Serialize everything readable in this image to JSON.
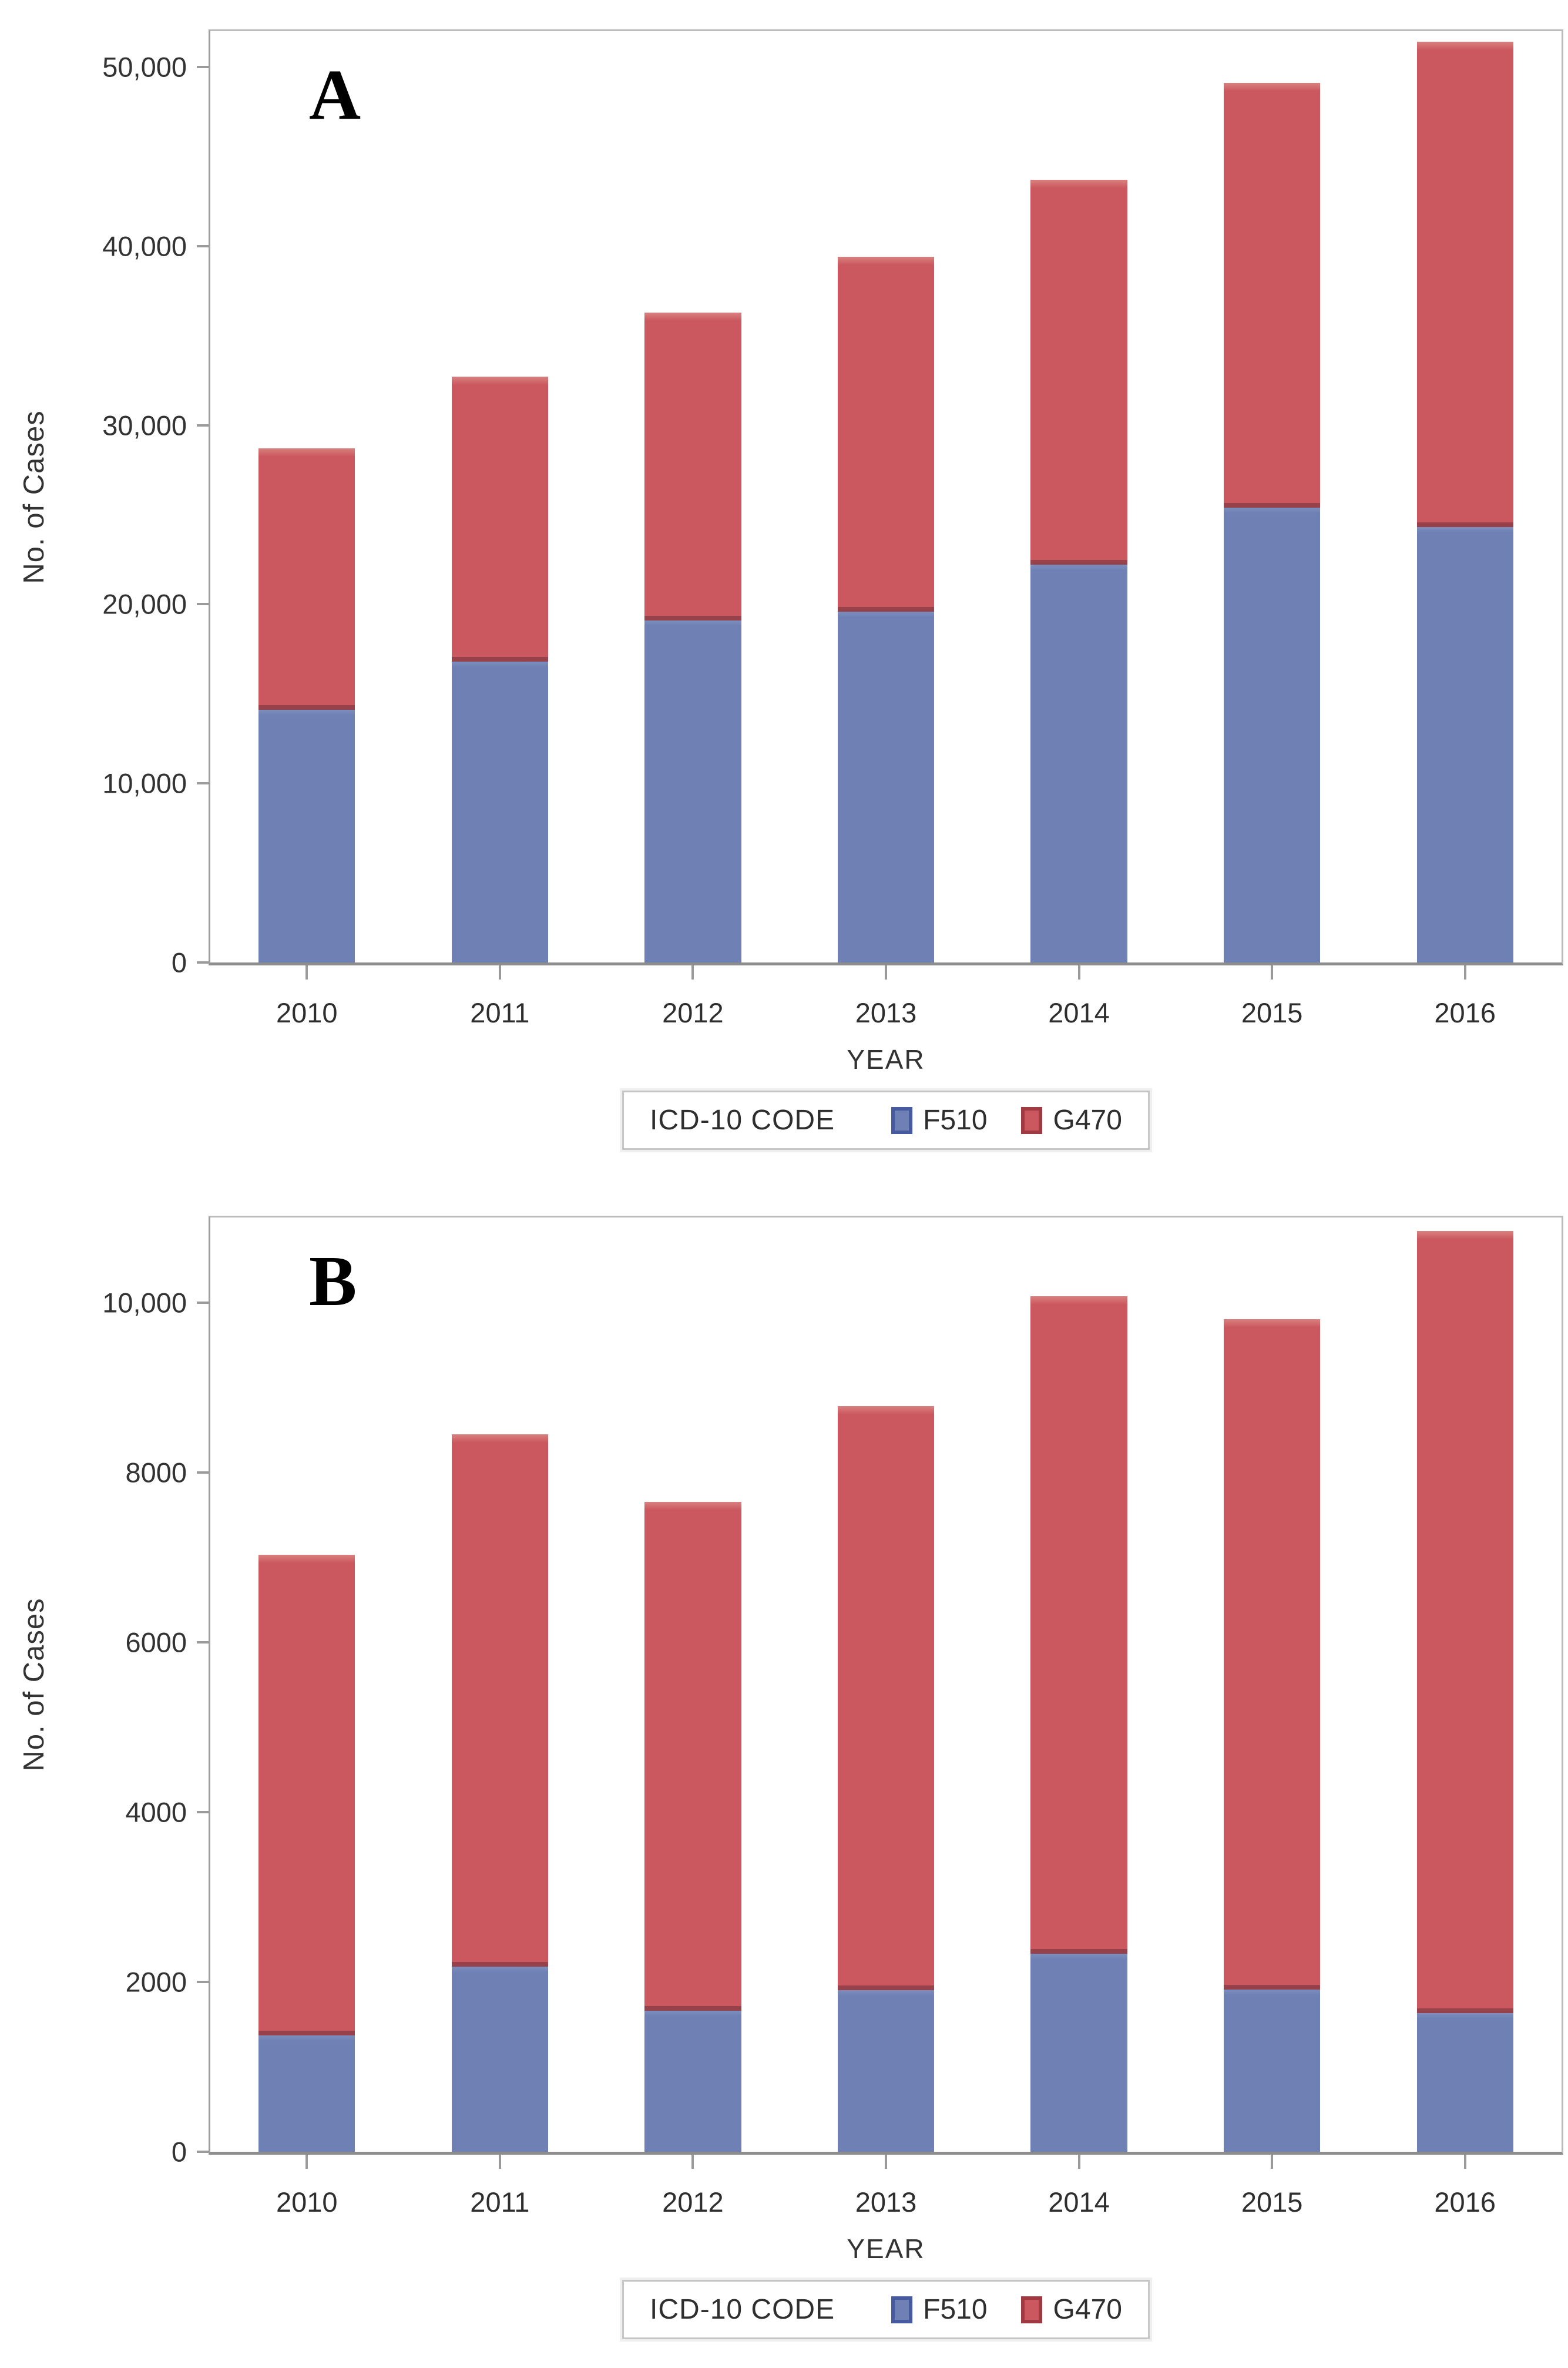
{
  "figure": {
    "background": "#ffffff",
    "panels": [
      "A",
      "B"
    ]
  },
  "colors": {
    "f510_fill": "#6e80b4",
    "f510_edge": "#47599f",
    "g470_fill": "#cb585e",
    "g470_edge": "#a03a42",
    "segment_boundary": "#97424a",
    "axis_line": "#8d8d8d",
    "frame_line": "#bcbcbc",
    "tick": "#9b9b9b",
    "text": "#2e2e2e"
  },
  "chart_data": [
    {
      "type": "bar",
      "stacked": true,
      "panel": "A",
      "xlabel": "YEAR",
      "ylabel": "No. of Cases",
      "legend_title": "ICD-10 CODE",
      "legend_position": "bottom",
      "grid": false,
      "categories": [
        "2010",
        "2011",
        "2012",
        "2013",
        "2014",
        "2015",
        "2016"
      ],
      "series": [
        {
          "name": "F510",
          "color": "#6e80b4",
          "edge": "#47599f",
          "values": [
            14100,
            16800,
            19100,
            19600,
            22200,
            25400,
            24300
          ]
        },
        {
          "name": "G470",
          "color": "#cb585e",
          "edge": "#a03a42",
          "values": [
            14600,
            15900,
            17200,
            19800,
            21500,
            23700,
            27100
          ]
        }
      ],
      "stack_totals": [
        28700,
        32700,
        36300,
        39400,
        43700,
        49100,
        51400
      ],
      "ylim": [
        0,
        52000
      ],
      "yticks": [
        {
          "value": 0,
          "label": "0"
        },
        {
          "value": 10000,
          "label": "10,000"
        },
        {
          "value": 20000,
          "label": "20,000"
        },
        {
          "value": 30000,
          "label": "30,000"
        },
        {
          "value": 40000,
          "label": "40,000"
        },
        {
          "value": 50000,
          "label": "50,000"
        }
      ]
    },
    {
      "type": "bar",
      "stacked": true,
      "panel": "B",
      "xlabel": "YEAR",
      "ylabel": "No. of Cases",
      "legend_title": "ICD-10 CODE",
      "legend_position": "bottom",
      "grid": false,
      "categories": [
        "2010",
        "2011",
        "2012",
        "2013",
        "2014",
        "2015",
        "2016"
      ],
      "series": [
        {
          "name": "F510",
          "color": "#6e80b4",
          "edge": "#47599f",
          "values": [
            1370,
            2180,
            1660,
            1900,
            2330,
            1910,
            1630
          ]
        },
        {
          "name": "G470",
          "color": "#cb585e",
          "edge": "#a03a42",
          "values": [
            5660,
            6270,
            5990,
            6880,
            7740,
            7890,
            9210
          ]
        }
      ],
      "stack_totals": [
        7030,
        8450,
        7650,
        8780,
        10070,
        9800,
        10840
      ],
      "ylim": [
        0,
        11000
      ],
      "yticks": [
        {
          "value": 0,
          "label": "0"
        },
        {
          "value": 2000,
          "label": "2000"
        },
        {
          "value": 4000,
          "label": "4000"
        },
        {
          "value": 6000,
          "label": "6000"
        },
        {
          "value": 8000,
          "label": "8000"
        },
        {
          "value": 10000,
          "label": "10,000"
        }
      ]
    }
  ]
}
